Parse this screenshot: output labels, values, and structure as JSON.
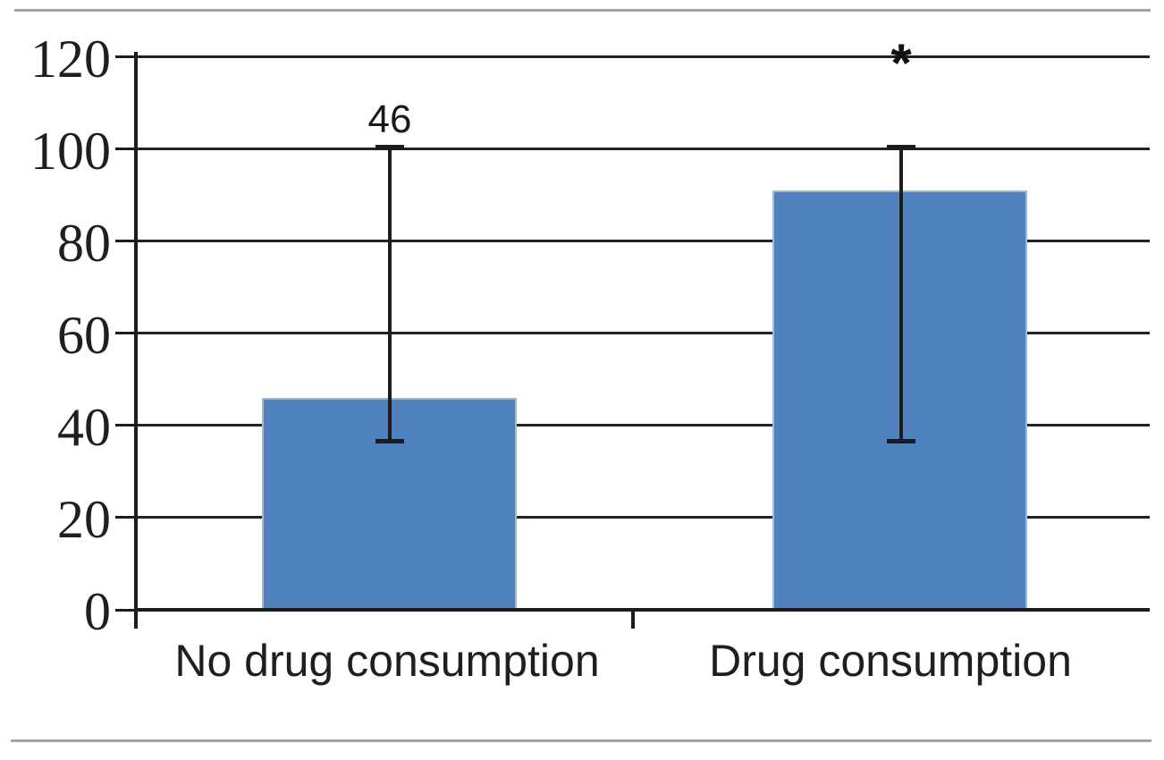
{
  "chart_data": {
    "type": "bar",
    "title": "",
    "xlabel": "",
    "ylabel": "",
    "categories": [
      "No drug consumption",
      "Drug consumption"
    ],
    "values": [
      46,
      91
    ],
    "data_labels": [
      "46",
      null
    ],
    "error_bars": [
      {
        "category": "No drug consumption",
        "upper": 100,
        "lower": 37
      },
      {
        "category": "Drug consumption",
        "upper": 100,
        "lower": 37
      }
    ],
    "annotations": [
      {
        "text": "*",
        "category": "Drug consumption",
        "value": 120
      }
    ],
    "ylim": [
      0,
      120
    ],
    "yticks": [
      0,
      20,
      40,
      60,
      80,
      100,
      120
    ],
    "grid": "horizontal",
    "legend": "none",
    "bar_color": "#4f81bd"
  },
  "colors": {
    "bar_fill": "#4f81bd",
    "bar_edge": "#9fb9da",
    "axis": "#1c1c1c",
    "gridline": "#222222",
    "text": "#1f1f1f",
    "divider": "#a3a3a3",
    "background": "#ffffff"
  }
}
